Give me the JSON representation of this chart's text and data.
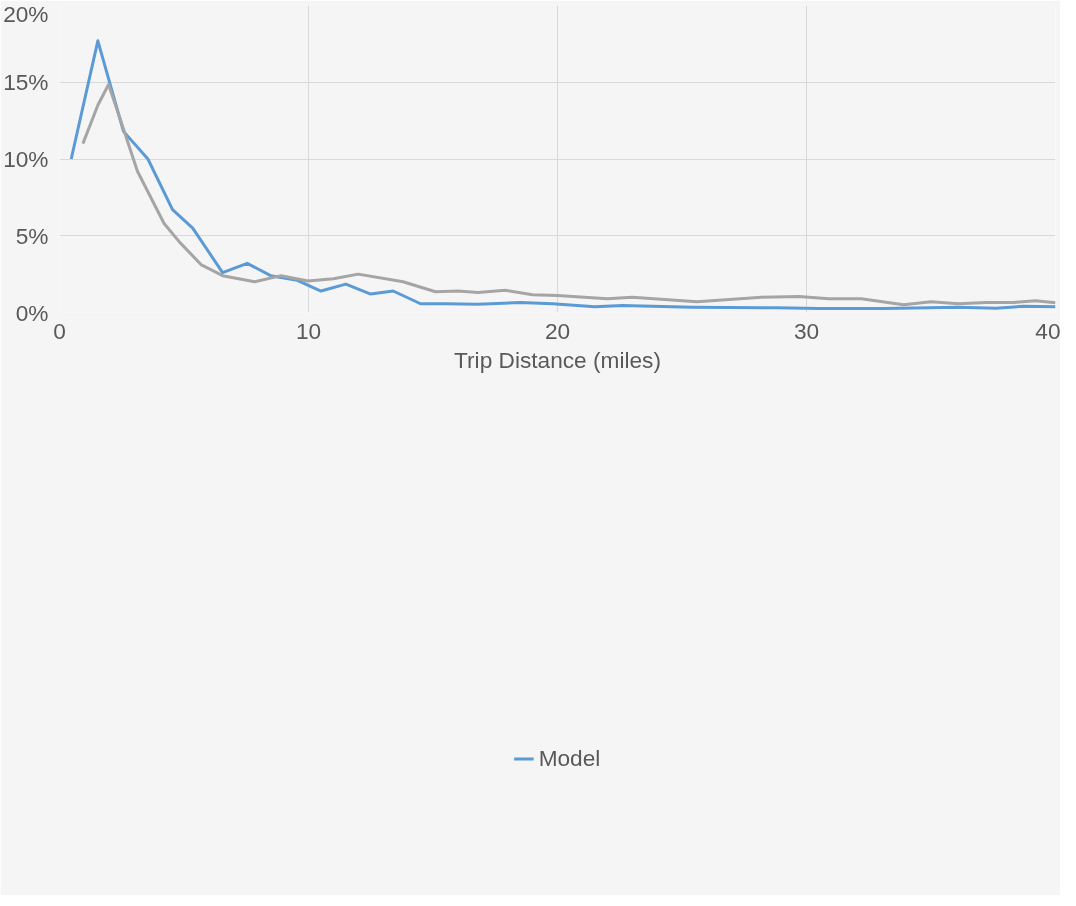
{
  "chart_data": {
    "type": "line",
    "xlabel": "Trip Distance (miles)",
    "xlim": [
      0,
      40
    ],
    "xticks": [
      0,
      10,
      20,
      30,
      40
    ],
    "ylim": [
      0,
      20
    ],
    "yticks": [
      {
        "value": 0,
        "label": "0%"
      },
      {
        "value": 5,
        "label": "5%"
      },
      {
        "value": 10,
        "label": "10%"
      },
      {
        "value": 15,
        "label": "15%"
      },
      {
        "value": 20,
        "label": "20%"
      }
    ],
    "grid": true,
    "legend": "bottom",
    "line_style": "solid",
    "marker": "none",
    "series": [
      {
        "name": "Model",
        "color": "#5b9bd5",
        "x": [
          0.47,
          1.54,
          2.57,
          3.55,
          4.54,
          5.35,
          6.55,
          7.54,
          8.48,
          9.55,
          10.5,
          11.5,
          12.5,
          13.4,
          14.5,
          15.5,
          16.8,
          18.5,
          19.8,
          21.5,
          22.6,
          25.4,
          28.8,
          30.5,
          33.1,
          36.1,
          37.6,
          38.7,
          40
        ],
        "values": [
          10.0,
          17.7,
          11.8,
          10.0,
          6.7,
          5.5,
          2.6,
          3.2,
          2.4,
          2.1,
          1.4,
          1.85,
          1.2,
          1.4,
          0.57,
          0.57,
          0.54,
          0.65,
          0.57,
          0.37,
          0.45,
          0.34,
          0.31,
          0.26,
          0.26,
          0.34,
          0.28,
          0.4,
          0.37
        ]
      },
      {
        "color": "#a5a5a5",
        "x": [
          0.94,
          1.54,
          1.97,
          2.48,
          3.13,
          4.2,
          4.84,
          5.7,
          6.55,
          7.84,
          8.9,
          9.98,
          11.0,
          12.0,
          13.8,
          15.1,
          16.0,
          16.8,
          17.9,
          19.0,
          20.0,
          22.0,
          23.0,
          25.6,
          26.9,
          28.2,
          29.7,
          30.9,
          32.2,
          33.9,
          35.0,
          36.1,
          37.2,
          38.3,
          39.2,
          40
        ],
        "values": [
          11.0,
          13.5,
          14.85,
          12.4,
          9.2,
          5.8,
          4.55,
          3.1,
          2.4,
          2.0,
          2.4,
          2.05,
          2.2,
          2.5,
          2.0,
          1.35,
          1.4,
          1.3,
          1.45,
          1.15,
          1.1,
          0.9,
          1.0,
          0.7,
          0.85,
          1.0,
          1.05,
          0.9,
          0.9,
          0.5,
          0.7,
          0.57,
          0.65,
          0.65,
          0.77,
          0.63
        ]
      }
    ]
  }
}
